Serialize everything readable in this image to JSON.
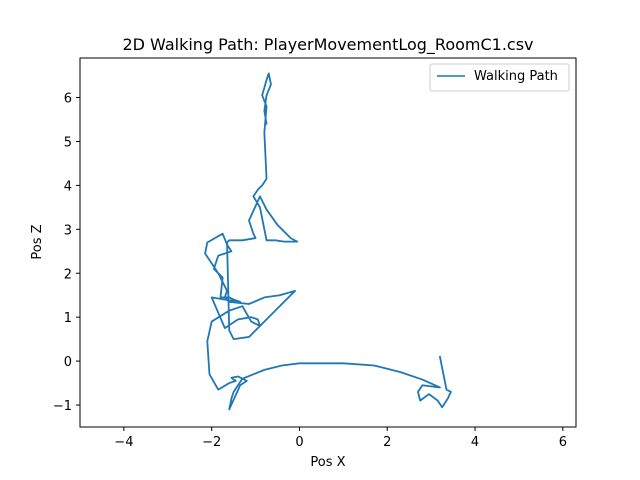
{
  "chart_data": {
    "type": "line",
    "title": "2D Walking Path: PlayerMovementLog_RoomC1.csv",
    "xlabel": "Pos X",
    "ylabel": "Pos Z",
    "xlim": [
      -5,
      6.3
    ],
    "ylim": [
      -1.5,
      6.9
    ],
    "xticks": [
      -4,
      -2,
      0,
      2,
      4,
      6
    ],
    "yticks": [
      -1,
      0,
      1,
      2,
      3,
      4,
      5,
      6
    ],
    "grid": false,
    "legend": {
      "placement": "top-right",
      "entries": [
        "Walking Path"
      ]
    },
    "series": [
      {
        "name": "Walking Path",
        "color": "#1f77b4",
        "x": [
          3.2,
          3.25,
          3.3,
          3.35,
          3.45,
          3.38,
          3.25,
          3.15,
          2.95,
          2.75,
          2.7,
          2.8,
          3.2,
          2.8,
          2.3,
          1.7,
          1.0,
          0.5,
          0.0,
          -0.4,
          -0.8,
          -1.1,
          -1.3,
          -1.4,
          -1.5,
          -1.55,
          -1.6,
          -1.35,
          -1.2,
          -1.4,
          -1.55,
          -1.5,
          -1.45,
          -1.6,
          -1.85,
          -2.05,
          -2.1,
          -2.0,
          -1.6,
          -1.3,
          -1.1,
          -0.9,
          -0.95,
          -1.1,
          -1.4,
          -1.7,
          -2.0,
          -1.7,
          -1.35,
          -1.5,
          -1.6,
          -1.8,
          -1.75,
          -1.95,
          -1.85,
          -1.55,
          -1.65,
          -1.75,
          -2.1,
          -2.15,
          -1.85,
          -1.65,
          -1.7,
          -1.6,
          -1.15,
          -0.8,
          -0.45,
          -0.1,
          -0.5,
          -0.9,
          -1.15,
          -1.5,
          -1.6,
          -1.65,
          -1.6,
          -1.3,
          -1.0,
          -1.05,
          -1.15,
          -0.9,
          -0.75,
          -0.5,
          -0.2,
          -0.05,
          -0.35,
          -0.55,
          -0.75,
          -0.8,
          -0.9,
          -1.05,
          -0.95,
          -0.85,
          -0.75,
          -0.8,
          -0.75,
          -0.85,
          -0.75,
          -0.7,
          -0.65,
          -0.75,
          -0.8,
          -0.75
        ],
        "y": [
          0.1,
          -0.15,
          -0.4,
          -0.65,
          -0.7,
          -0.85,
          -1.05,
          -0.9,
          -0.75,
          -0.9,
          -0.7,
          -0.55,
          -0.6,
          -0.42,
          -0.25,
          -0.1,
          -0.05,
          -0.05,
          -0.05,
          -0.1,
          -0.2,
          -0.32,
          -0.4,
          -0.55,
          -0.7,
          -0.85,
          -1.1,
          -0.55,
          -0.45,
          -0.35,
          -0.38,
          -0.42,
          -0.45,
          -0.5,
          -0.65,
          -0.3,
          0.45,
          0.9,
          1.15,
          1.25,
          0.9,
          0.8,
          0.95,
          1.0,
          0.95,
          0.75,
          1.45,
          1.4,
          1.35,
          1.4,
          1.45,
          1.45,
          1.9,
          2.1,
          2.4,
          2.5,
          2.65,
          2.9,
          2.7,
          2.45,
          2.0,
          1.6,
          1.45,
          1.35,
          1.3,
          1.45,
          1.5,
          1.6,
          1.2,
          0.8,
          0.55,
          0.5,
          0.7,
          2.7,
          2.75,
          2.75,
          2.8,
          2.9,
          3.2,
          3.75,
          3.45,
          3.1,
          2.8,
          2.72,
          2.72,
          2.75,
          2.75,
          3.0,
          3.5,
          3.75,
          3.9,
          4.0,
          4.15,
          5.2,
          5.8,
          6.05,
          6.4,
          6.55,
          6.3,
          6.05,
          5.7,
          5.4
        ]
      }
    ]
  }
}
